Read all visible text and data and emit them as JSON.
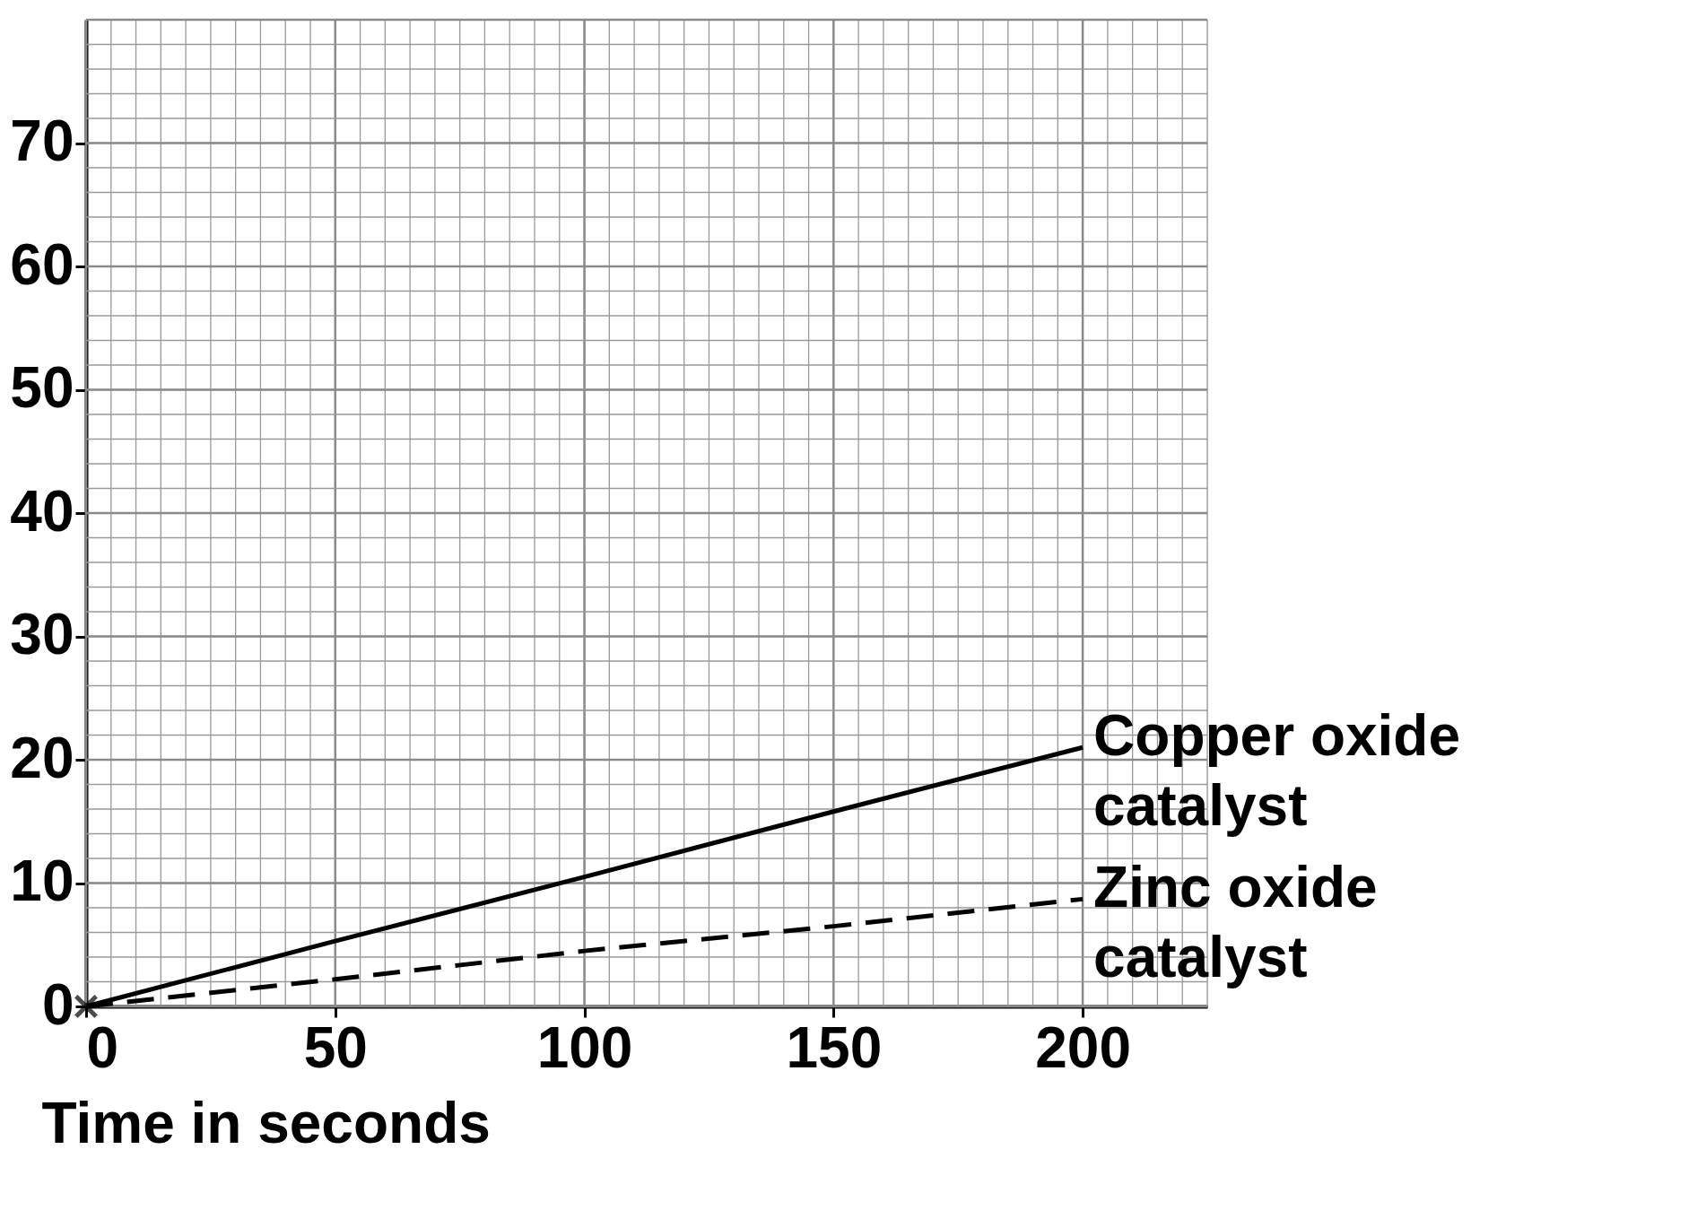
{
  "chart_data": {
    "type": "line",
    "xlabel": "Time in seconds",
    "xlim": [
      0,
      225
    ],
    "ylim": [
      0,
      80
    ],
    "xticks": [
      0,
      50,
      100,
      150,
      200
    ],
    "yticks": [
      0,
      10,
      20,
      30,
      40,
      50,
      60,
      70
    ],
    "grid": true,
    "series": [
      {
        "name": "Copper oxide catalyst",
        "color": "#000000",
        "line_style": "solid",
        "marker": "none",
        "x": [
          0,
          50,
          100,
          150,
          200
        ],
        "values": [
          0,
          5.3,
          10.5,
          15.8,
          21
        ]
      },
      {
        "name": "Zinc oxide catalyst",
        "color": "#000000",
        "line_style": "dashed",
        "marker": "none",
        "x": [
          0,
          50,
          100,
          150,
          200
        ],
        "values": [
          0,
          2.2,
          4.5,
          6.5,
          8.7
        ]
      },
      {
        "type": "scatter",
        "color": "#000000",
        "marker": "cross",
        "x": [
          0
        ],
        "values": [
          0
        ]
      }
    ]
  }
}
